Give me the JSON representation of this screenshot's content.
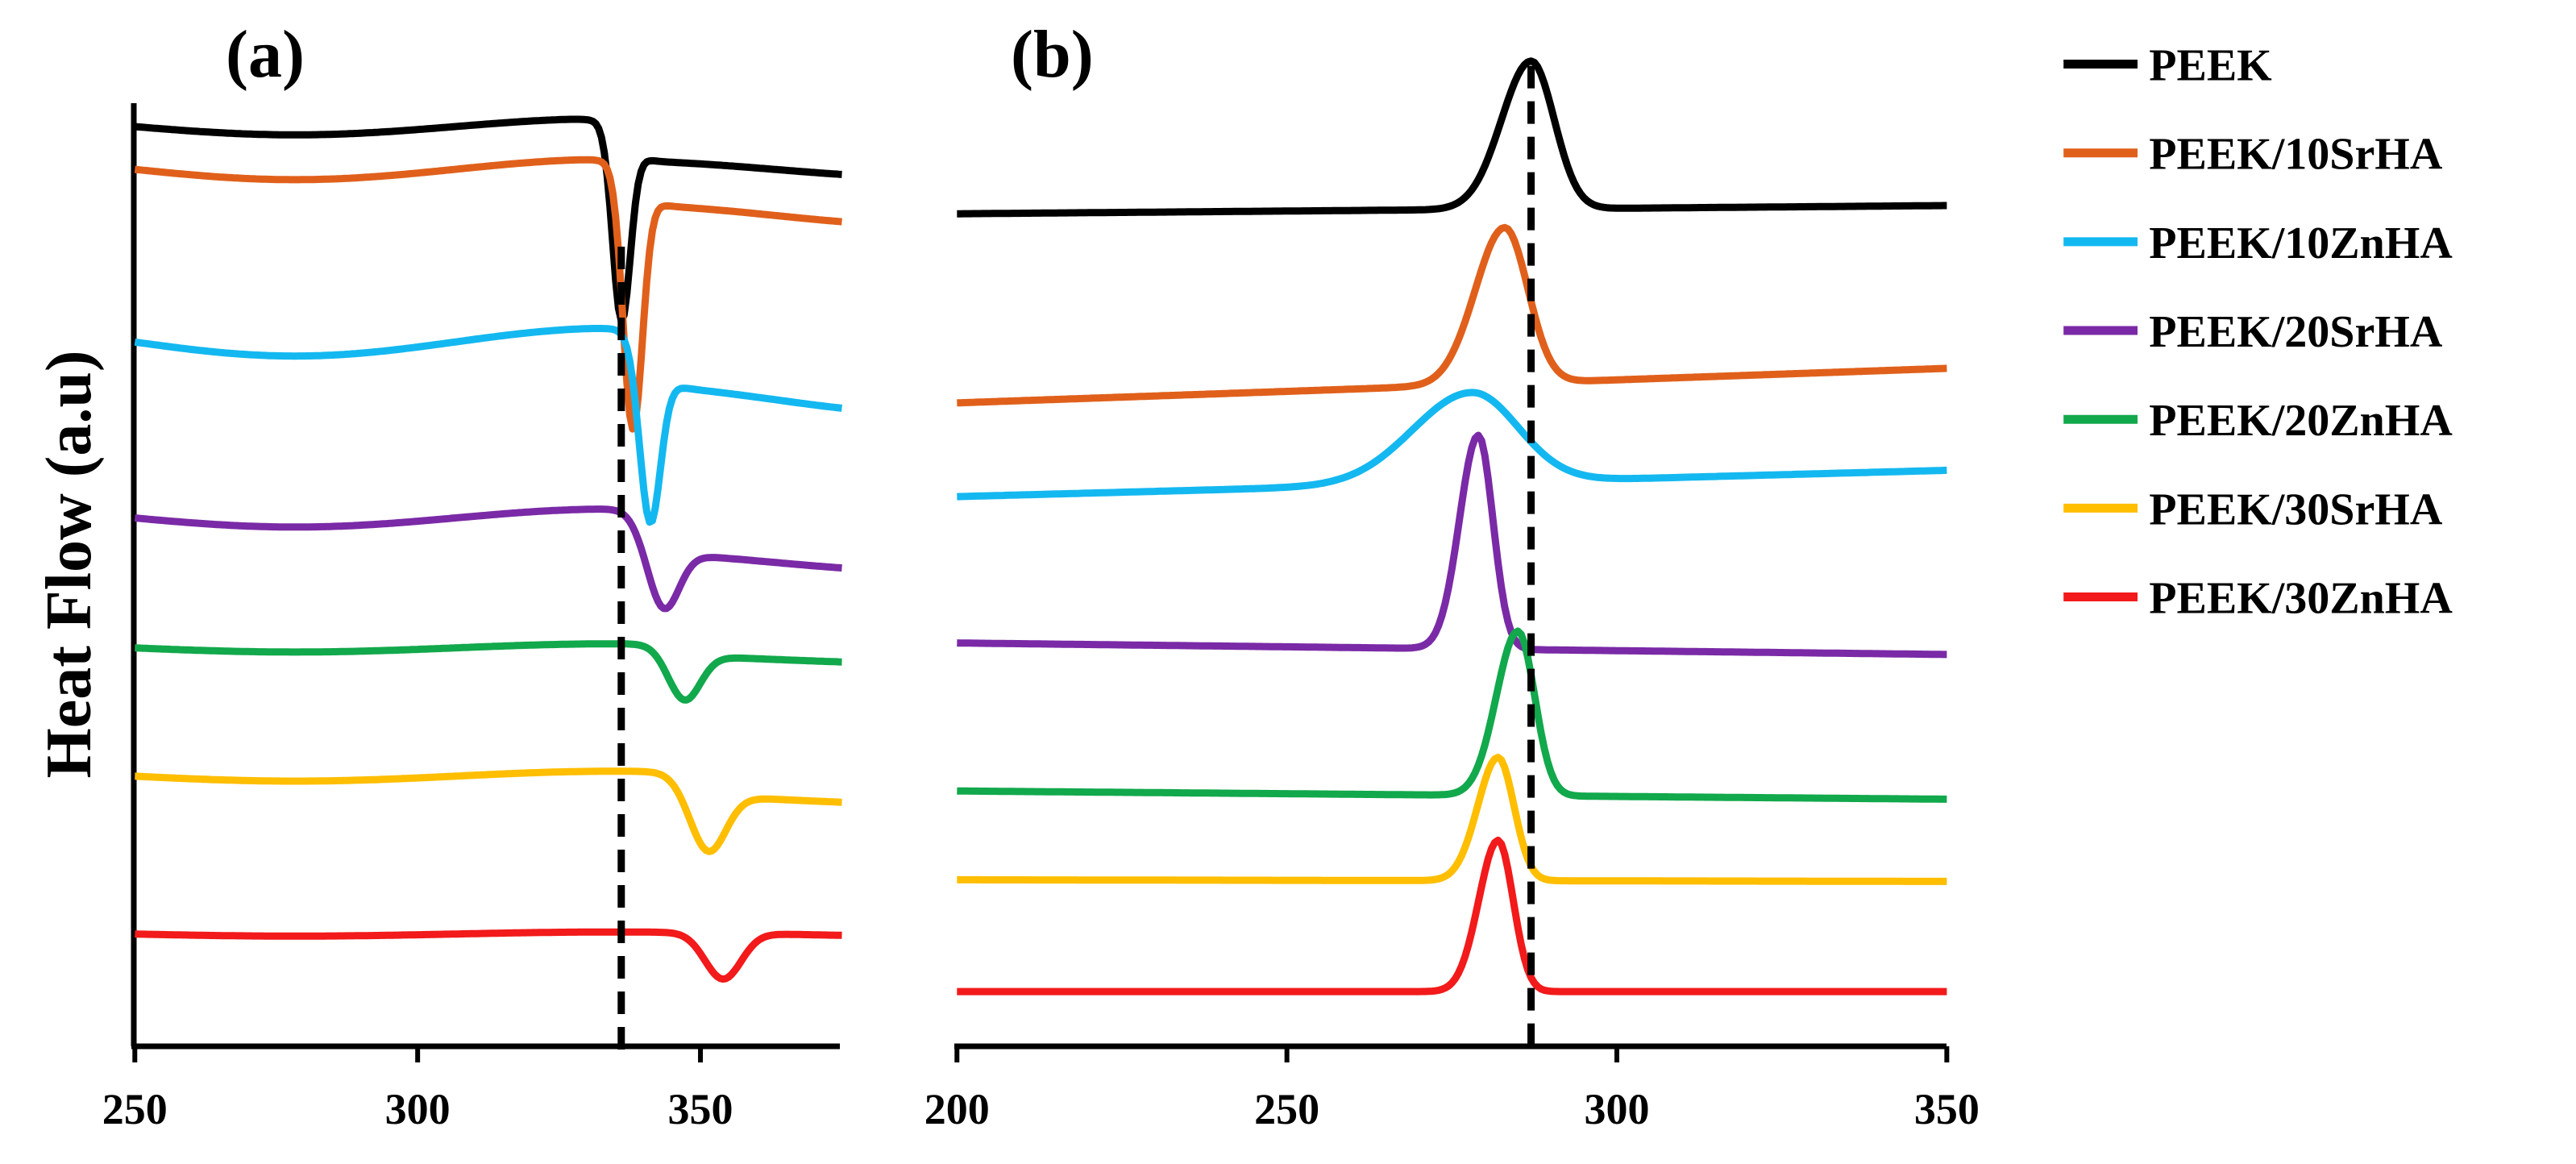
{
  "chart_data": [
    {
      "type": "line",
      "panel": "(a)",
      "ylabel": "Heat Flow (a.u)",
      "xlim": [
        250,
        375
      ],
      "xticks": [
        "250",
        "300",
        "350"
      ],
      "ref_line_x": 336,
      "series": [
        {
          "name": "PEEK",
          "color": "#000000",
          "offset": 77,
          "peak_x": 336,
          "peak_depth": 110,
          "peak_width": 2.2,
          "tail": 20,
          "post_offset": 103
        },
        {
          "name": "PEEK/10SrHA",
          "color": "#E0601B",
          "offset": 103,
          "peak_x": 338,
          "peak_depth": 150,
          "peak_width": 2.4,
          "tail": 25,
          "post_offset": 131
        },
        {
          "name": "PEEK/10ZnHA",
          "color": "#14B8F0",
          "offset": 208,
          "peak_x": 341,
          "peak_depth": 100,
          "peak_width": 2.6,
          "tail": 34,
          "post_offset": 243
        },
        {
          "name": "PEEK/20SrHA",
          "color": "#7A2AA6",
          "offset": 315,
          "peak_x": 343,
          "peak_depth": 45,
          "peak_width": 4.0,
          "tail": 22,
          "post_offset": 342
        },
        {
          "name": "PEEK/20ZnHA",
          "color": "#12A84C",
          "offset": 394,
          "peak_x": 347,
          "peak_depth": 30,
          "peak_width": 4.0,
          "tail": 10,
          "post_offset": 401
        },
        {
          "name": "PEEK/30SrHA",
          "color": "#FFBE00",
          "offset": 472,
          "peak_x": 351,
          "peak_depth": 40,
          "peak_width": 4.5,
          "tail": 12,
          "post_offset": 486
        },
        {
          "name": "PEEK/30ZnHA",
          "color": "#F21A1A",
          "offset": 568,
          "peak_x": 354,
          "peak_depth": 28,
          "peak_width": 4.5,
          "tail": 5,
          "post_offset": 568
        }
      ]
    },
    {
      "type": "line",
      "panel": "(b)",
      "xlim": [
        200,
        350
      ],
      "xticks": [
        "200",
        "250",
        "300",
        "350"
      ],
      "ref_line_x": 287,
      "series": [
        {
          "name": "PEEK",
          "color": "#000000",
          "start": 130,
          "end": 125,
          "peak_x": 287,
          "peak_height": 90,
          "peak_width": 5.5
        },
        {
          "name": "PEEK/10SrHA",
          "color": "#E0601B",
          "start": 245,
          "end": 224,
          "peak_x": 283,
          "peak_height": 95,
          "peak_width": 5.5
        },
        {
          "name": "PEEK/10ZnHA",
          "color": "#14B8F0",
          "start": 302,
          "end": 286,
          "peak_x": 278,
          "peak_height": 55,
          "peak_width": 11
        },
        {
          "name": "PEEK/20SrHA",
          "color": "#7A2AA6",
          "start": 391,
          "end": 398,
          "peak_x": 279,
          "peak_height": 130,
          "peak_width": 3.5
        },
        {
          "name": "PEEK/20ZnHA",
          "color": "#12A84C",
          "start": 481,
          "end": 486,
          "peak_x": 285,
          "peak_height": 100,
          "peak_width": 4.0
        },
        {
          "name": "PEEK/30SrHA",
          "color": "#FFBE00",
          "start": 535,
          "end": 536,
          "peak_x": 282,
          "peak_height": 75,
          "peak_width": 3.8
        },
        {
          "name": "PEEK/30ZnHA",
          "color": "#F21A1A",
          "start": 603,
          "end": 603,
          "peak_x": 282,
          "peak_height": 92,
          "peak_width": 3.6
        }
      ]
    }
  ],
  "legend": [
    {
      "label": "PEEK",
      "color": "#000000"
    },
    {
      "label": "PEEK/10SrHA",
      "color": "#E0601B"
    },
    {
      "label": "PEEK/10ZnHA",
      "color": "#14B8F0"
    },
    {
      "label": "PEEK/20SrHA",
      "color": "#7A2AA6"
    },
    {
      "label": "PEEK/20ZnHA",
      "color": "#12A84C"
    },
    {
      "label": "PEEK/30SrHA",
      "color": "#FFBE00"
    },
    {
      "label": "PEEK/30ZnHA",
      "color": "#F21A1A"
    }
  ]
}
